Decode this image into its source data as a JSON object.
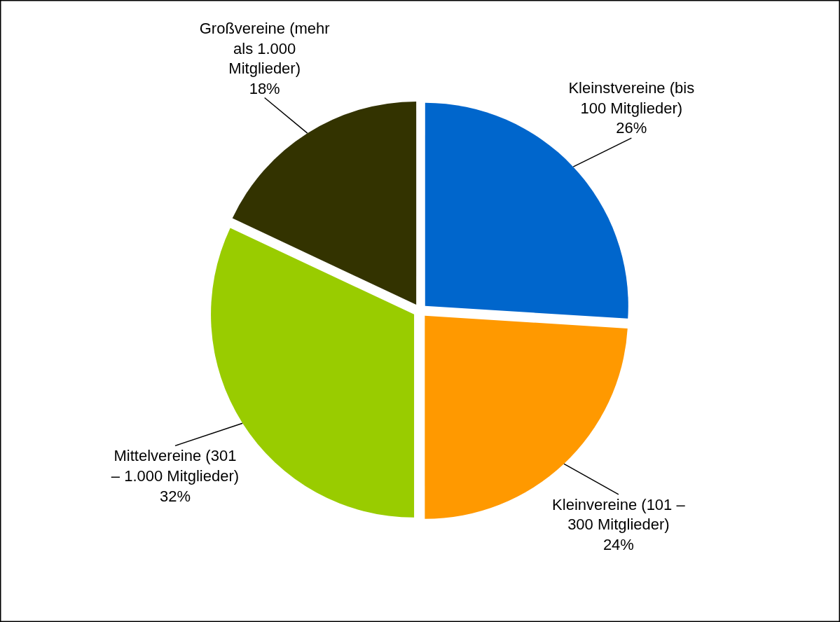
{
  "chart_data": {
    "type": "pie",
    "categories": [
      "Kleinstvereine (bis 100 Mitglieder)",
      "Kleinvereine (101 – 300 Mitglieder)",
      "Mittelvereine (301 – 1.000 Mitglieder)",
      "Großvereine (mehr als 1.000 Mitglieder)"
    ],
    "values": [
      26,
      24,
      32,
      18
    ],
    "value_labels": [
      "26%",
      "24%",
      "32%",
      "18%"
    ],
    "colors": [
      "#0066cc",
      "#ff9900",
      "#99cc00",
      "#333300"
    ],
    "legend": false
  }
}
